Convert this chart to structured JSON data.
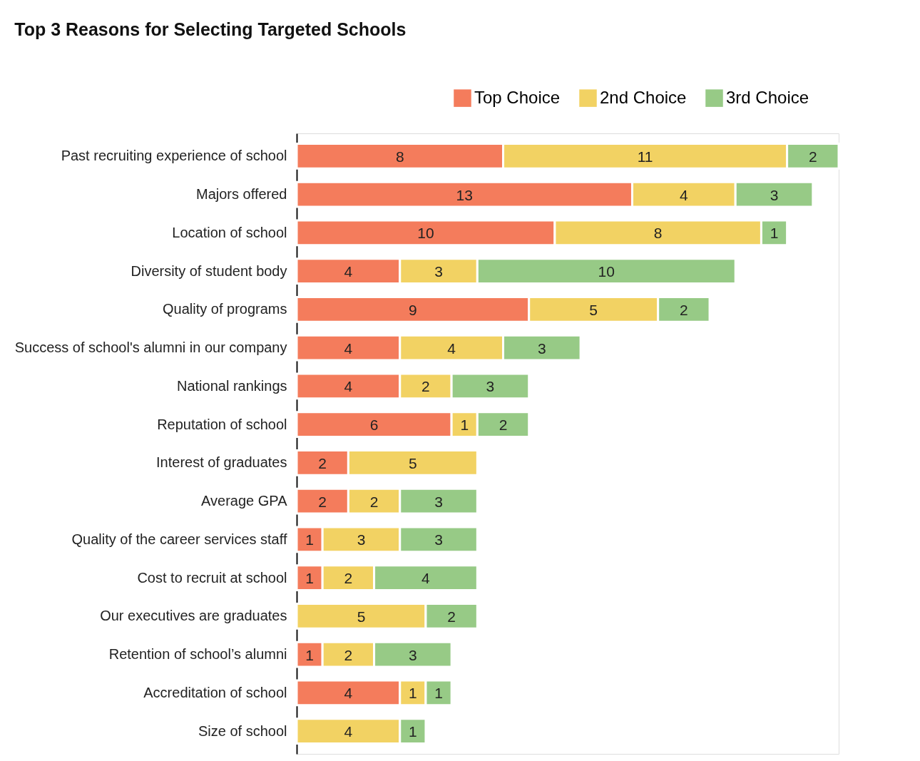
{
  "chart_data": {
    "type": "bar",
    "orientation": "horizontal",
    "stacked": true,
    "data_labels": true,
    "legend": "top right",
    "grid": false,
    "title": "Top 3 Reasons for Selecting Targeted Schools",
    "categories": [
      "Past recruiting experience of school",
      "Majors offered",
      "Location of school",
      "Diversity of student body",
      "Quality of programs",
      "Success of school's alumni in our company",
      "National rankings",
      "Reputation of school",
      "Interest of graduates",
      "Average GPA",
      "Quality of the career services staff",
      "Cost to recruit at school",
      "Our executives are graduates",
      "Retention of school’s alumni",
      "Accreditation of school",
      "Size of school"
    ],
    "series": [
      {
        "name": "Top Choice",
        "color": "#f47c5c",
        "values": [
          8,
          13,
          10,
          4,
          9,
          4,
          4,
          6,
          2,
          2,
          1,
          1,
          null,
          1,
          4,
          null
        ]
      },
      {
        "name": "2nd Choice",
        "color": "#f2d263",
        "values": [
          11,
          4,
          8,
          3,
          5,
          4,
          2,
          1,
          5,
          2,
          3,
          2,
          5,
          2,
          1,
          4
        ]
      },
      {
        "name": "3rd Choice",
        "color": "#97ca86",
        "values": [
          2,
          3,
          1,
          10,
          2,
          3,
          3,
          2,
          null,
          3,
          3,
          4,
          2,
          3,
          1,
          1
        ]
      }
    ]
  }
}
